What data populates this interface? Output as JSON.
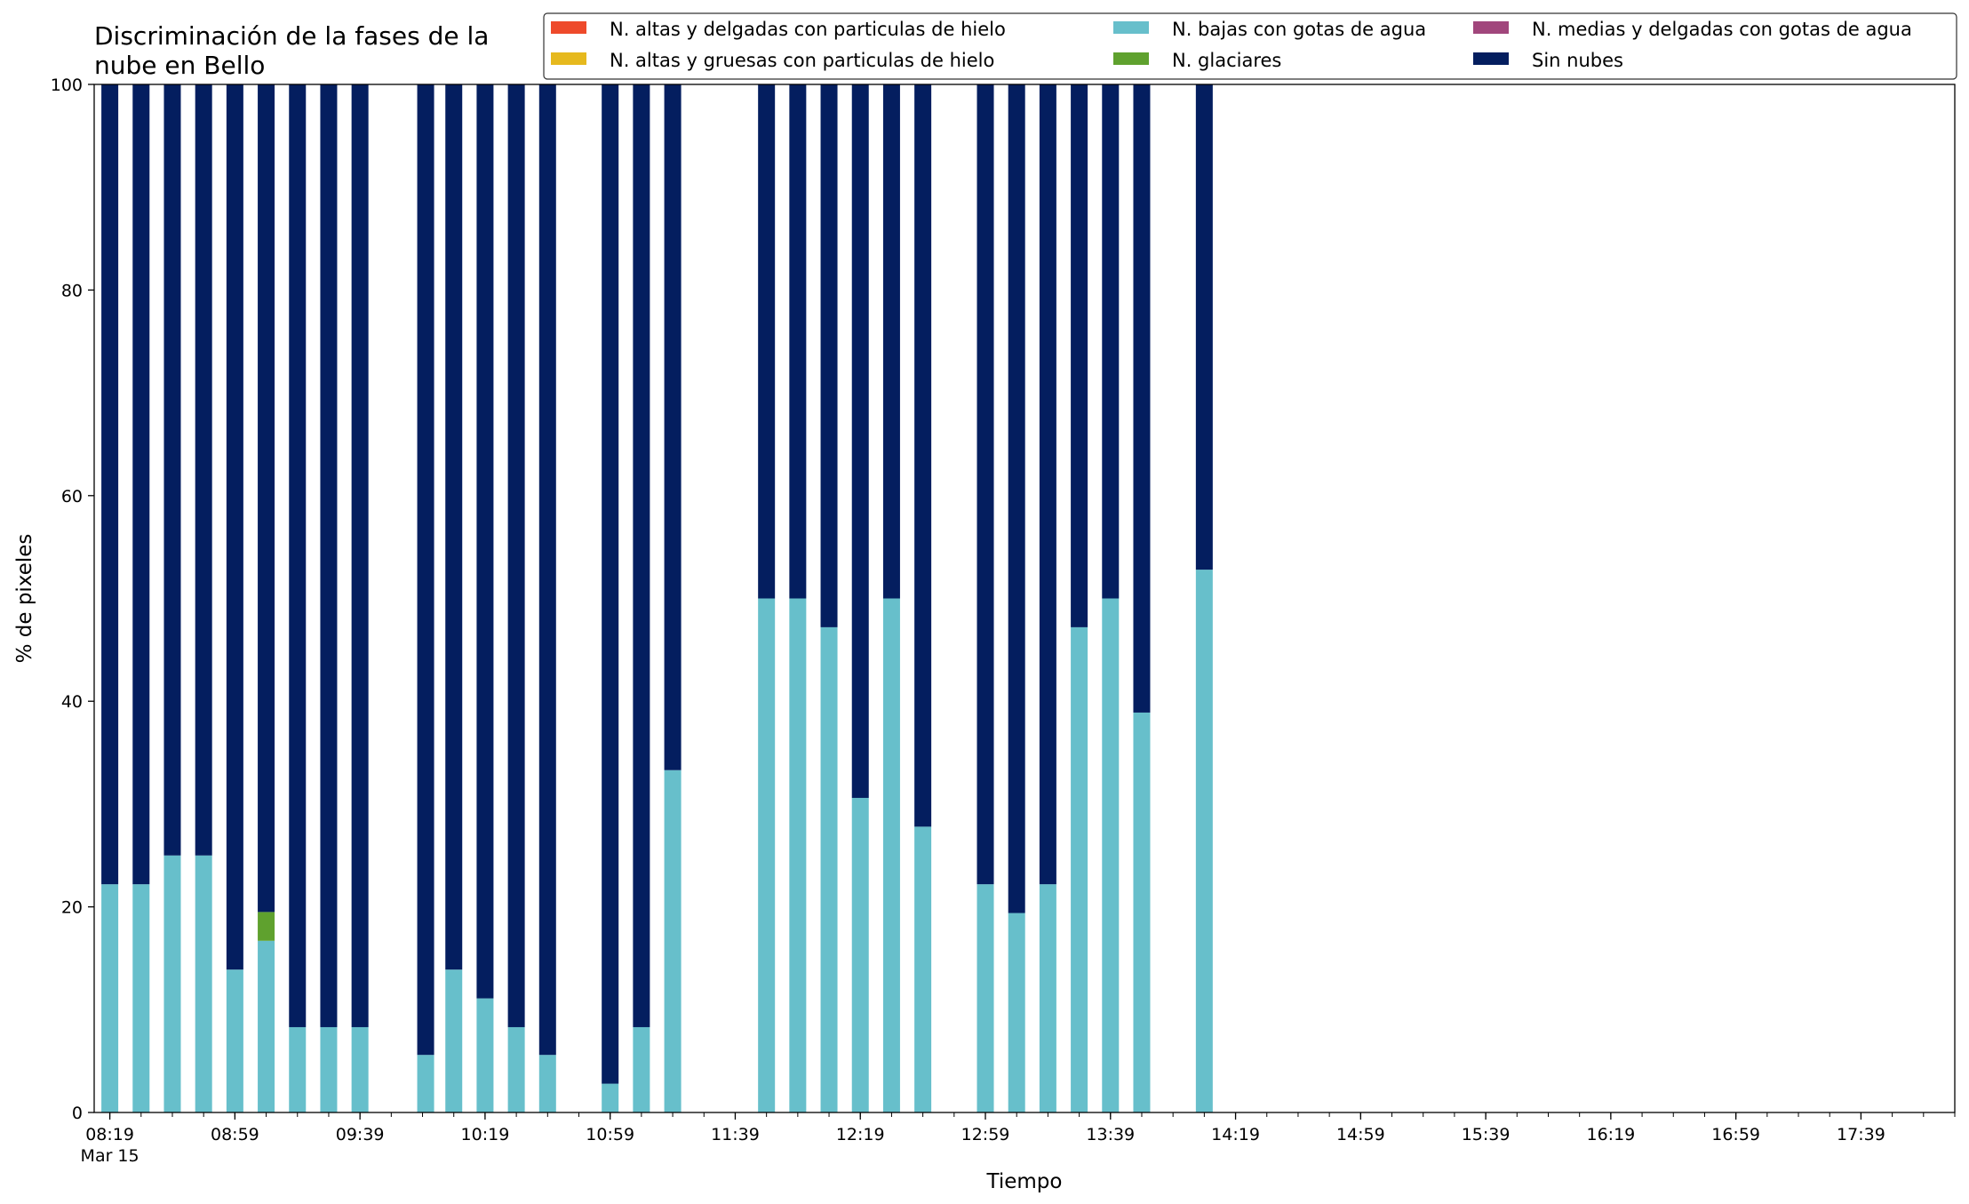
{
  "chart_data": {
    "type": "bar",
    "stacked": true,
    "title": "Discriminación de la fases de la\nnube en Bello",
    "xlabel": "Tiempo",
    "ylabel": "% de pixeles",
    "ylim": [
      0,
      100
    ],
    "yticks": [
      0,
      20,
      40,
      60,
      80,
      100
    ],
    "x_range": [
      "08:14",
      "18:09"
    ],
    "xtick_labels": [
      "08:19",
      "08:59",
      "09:39",
      "10:19",
      "10:59",
      "11:39",
      "12:19",
      "12:59",
      "13:39",
      "14:19",
      "14:59",
      "15:39",
      "16:19",
      "16:59",
      "17:39"
    ],
    "xtick_sublabel": "Mar 15",
    "minor_tick_step_minutes": 10,
    "grid": false,
    "legend_position": "top-right",
    "categories": [
      "08:19",
      "08:29",
      "08:39",
      "08:49",
      "08:59",
      "09:09",
      "09:19",
      "09:29",
      "09:39",
      "10:00",
      "10:09",
      "10:19",
      "10:29",
      "10:39",
      "10:59",
      "11:09",
      "11:19",
      "11:49",
      "11:59",
      "12:09",
      "12:19",
      "12:29",
      "12:39",
      "12:59",
      "13:09",
      "13:19",
      "13:29",
      "13:39",
      "13:49",
      "14:09"
    ],
    "series": [
      {
        "name": "N. altas y delgadas con particulas de hielo",
        "color": "#ee4a2b",
        "values": [
          0,
          0,
          0,
          0,
          0,
          0,
          0,
          0,
          0,
          0,
          0,
          0,
          0,
          0,
          0,
          0,
          0,
          0,
          0,
          0,
          0,
          0,
          0,
          0,
          0,
          0,
          0,
          0,
          0,
          0
        ]
      },
      {
        "name": "N. altas y gruesas con particulas de hielo",
        "color": "#e6b91e",
        "values": [
          0,
          0,
          0,
          0,
          0,
          0,
          0,
          0,
          0,
          0,
          0,
          0,
          0,
          0,
          0,
          0,
          0,
          0,
          0,
          0,
          0,
          0,
          0,
          0,
          0,
          0,
          0,
          0,
          0,
          0
        ]
      },
      {
        "name": "N. bajas con gotas de agua",
        "color": "#67bfcb",
        "values": [
          22.2,
          22.2,
          25.0,
          25.0,
          13.9,
          16.7,
          8.3,
          8.3,
          8.3,
          5.6,
          13.9,
          11.1,
          8.3,
          5.6,
          2.8,
          8.3,
          33.3,
          50.0,
          50.0,
          47.2,
          30.6,
          50.0,
          27.8,
          22.2,
          19.4,
          22.2,
          47.2,
          50.0,
          38.9,
          52.8
        ]
      },
      {
        "name": "N. glaciares",
        "color": "#5fa12e",
        "values": [
          0,
          0,
          0,
          0,
          0,
          2.8,
          0,
          0,
          0,
          0,
          0,
          0,
          0,
          0,
          0,
          0,
          0,
          0,
          0,
          0,
          0,
          0,
          0,
          0,
          0,
          0,
          0,
          0,
          0,
          0
        ]
      },
      {
        "name": "N. medias y delgadas con gotas de agua",
        "color": "#a1467c",
        "values": [
          0,
          0,
          0,
          0,
          0,
          0,
          0,
          0,
          0,
          0,
          0,
          0,
          0,
          0,
          0,
          0,
          0,
          0,
          0,
          0,
          0,
          0,
          0,
          0,
          0,
          0,
          0,
          0,
          0,
          0
        ]
      },
      {
        "name": "Sin nubes",
        "color": "#041e5f",
        "values": [
          77.8,
          77.8,
          75.0,
          75.0,
          86.1,
          80.5,
          91.7,
          91.7,
          91.7,
          94.4,
          86.1,
          88.9,
          91.7,
          94.4,
          97.2,
          91.7,
          66.7,
          50.0,
          50.0,
          52.8,
          69.4,
          50.0,
          72.2,
          77.8,
          80.6,
          77.8,
          52.8,
          50.0,
          61.1,
          47.2
        ]
      }
    ],
    "legend_order": [
      "N. altas y delgadas con particulas de hielo",
      "N. altas y gruesas con particulas de hielo",
      "N. bajas con gotas de agua",
      "N. glaciares",
      "N. medias y delgadas con gotas de agua",
      "Sin nubes"
    ]
  }
}
